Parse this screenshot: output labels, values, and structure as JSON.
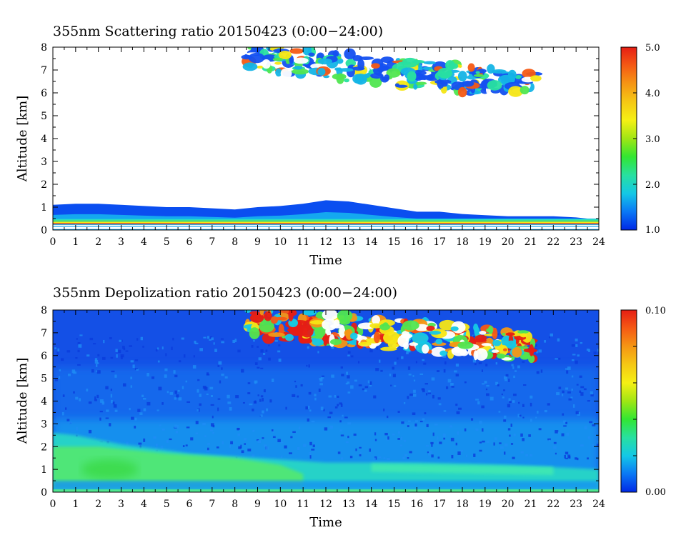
{
  "chart_data": [
    {
      "type": "heatmap",
      "title": "355nm Scattering ratio  20150423 (0:00−24:00)",
      "xlabel": "Time",
      "ylabel": "Altitude [km]",
      "xlim": [
        0,
        24
      ],
      "ylim": [
        0,
        8
      ],
      "x_ticks": [
        "0",
        "1",
        "2",
        "3",
        "4",
        "5",
        "6",
        "7",
        "8",
        "9",
        "10",
        "11",
        "12",
        "13",
        "14",
        "15",
        "16",
        "17",
        "18",
        "19",
        "20",
        "21",
        "22",
        "23",
        "24"
      ],
      "y_ticks": [
        "0",
        "1",
        "2",
        "3",
        "4",
        "5",
        "6",
        "7",
        "8"
      ],
      "colorbar": {
        "min": 1.0,
        "max": 5.0,
        "tick_labels": [
          "1.0",
          "2.0",
          "3.0",
          "4.0",
          "5.0"
        ],
        "tick_values": [
          1.0,
          2.0,
          3.0,
          4.0,
          5.0
        ],
        "colors": [
          "#0028e6",
          "#0a78f5",
          "#14c8e6",
          "#28e0a0",
          "#32e632",
          "#a0e614",
          "#f5f014",
          "#f5c814",
          "#f59614",
          "#f55a14",
          "#e61e14"
        ]
      },
      "features": [
        {
          "name": "boundary layer",
          "time_range": [
            0,
            24
          ],
          "top_altitude_km": [
            1.1,
            1.15,
            1.15,
            1.1,
            1.05,
            1.0,
            1.0,
            0.95,
            0.9,
            1.0,
            1.05,
            1.15,
            1.3,
            1.25,
            1.1,
            0.95,
            0.8,
            0.8,
            0.7,
            0.65,
            0.6,
            0.6,
            0.6,
            0.55,
            0.45
          ]
        },
        {
          "name": "cirrus layer",
          "time_range": [
            8.5,
            21.3
          ],
          "altitude_km": [
            6.0,
            8.0
          ]
        }
      ]
    },
    {
      "type": "heatmap",
      "title": "355nm Depolization ratio  20150423 (0:00−24:00)",
      "xlabel": "Time",
      "ylabel": "Altitude [km]",
      "xlim": [
        0,
        24
      ],
      "ylim": [
        0,
        8
      ],
      "x_ticks": [
        "0",
        "1",
        "2",
        "3",
        "4",
        "5",
        "6",
        "7",
        "8",
        "9",
        "10",
        "11",
        "12",
        "13",
        "14",
        "15",
        "16",
        "17",
        "18",
        "19",
        "20",
        "21",
        "22",
        "23",
        "24"
      ],
      "y_ticks": [
        "0",
        "1",
        "2",
        "3",
        "4",
        "5",
        "6",
        "7",
        "8"
      ],
      "colorbar": {
        "min": 0.0,
        "max": 0.1,
        "tick_labels": [
          "0.00",
          "0.10"
        ],
        "tick_values": [
          0.0,
          0.1
        ],
        "colors": [
          "#0028e6",
          "#0a78f5",
          "#14c8e6",
          "#28e0a0",
          "#32e632",
          "#a0e614",
          "#f5f014",
          "#f5c814",
          "#f59614",
          "#f55a14",
          "#e61e14"
        ]
      },
      "features": [
        {
          "name": "boundary layer",
          "time_range": [
            0,
            24
          ],
          "altitude_km": [
            0.0,
            2.5
          ]
        },
        {
          "name": "cirrus layer",
          "time_range": [
            8.5,
            21.3
          ],
          "altitude_km": [
            5.8,
            8.0
          ]
        }
      ]
    }
  ]
}
